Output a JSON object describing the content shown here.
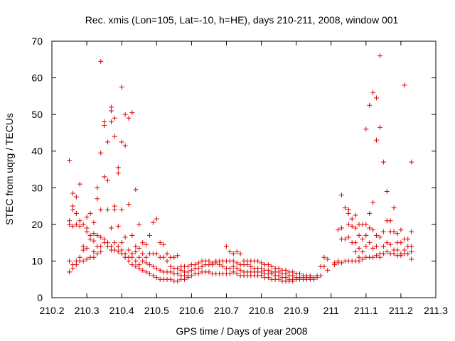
{
  "chart_data": {
    "type": "scatter",
    "title": "Rec. xmis (Lon=105, Lat=-10, h=HE), days 210-211, 2008, window 001",
    "xlabel": "GPS time / Days of year 2008",
    "ylabel": "STEC from uqrg / TECUs",
    "xlim": [
      210.2,
      211.3
    ],
    "ylim": [
      0,
      70
    ],
    "x_ticks": [
      "210.2",
      "210.3",
      "210.4",
      "210.5",
      "210.6",
      "210.7",
      "210.8",
      "210.9",
      "211",
      "211.1",
      "211.2",
      "211.3"
    ],
    "y_ticks": [
      "0",
      "10",
      "20",
      "30",
      "40",
      "50",
      "60",
      "70"
    ],
    "grid": false,
    "legend": "none",
    "marker": "+",
    "color": "#dd0000",
    "points": [
      [
        210.25,
        37.5
      ],
      [
        210.25,
        21
      ],
      [
        210.25,
        20
      ],
      [
        210.25,
        10
      ],
      [
        210.25,
        7
      ],
      [
        210.26,
        28.5
      ],
      [
        210.26,
        25
      ],
      [
        210.26,
        24
      ],
      [
        210.26,
        19.5
      ],
      [
        210.26,
        9
      ],
      [
        210.26,
        8
      ],
      [
        210.27,
        27.5
      ],
      [
        210.27,
        23
      ],
      [
        210.27,
        20
      ],
      [
        210.27,
        10
      ],
      [
        210.27,
        9
      ],
      [
        210.28,
        31
      ],
      [
        210.28,
        21
      ],
      [
        210.28,
        19.5
      ],
      [
        210.28,
        11
      ],
      [
        210.28,
        10
      ],
      [
        210.29,
        20
      ],
      [
        210.29,
        14
      ],
      [
        210.29,
        13
      ],
      [
        210.29,
        10
      ],
      [
        210.3,
        22
      ],
      [
        210.3,
        19
      ],
      [
        210.3,
        18
      ],
      [
        210.3,
        13.5
      ],
      [
        210.3,
        10.5
      ],
      [
        210.31,
        23
      ],
      [
        210.31,
        17
      ],
      [
        210.31,
        16
      ],
      [
        210.31,
        11
      ],
      [
        210.32,
        20.5
      ],
      [
        210.32,
        17.5
      ],
      [
        210.32,
        15.5
      ],
      [
        210.32,
        12.5
      ],
      [
        210.32,
        11
      ],
      [
        210.33,
        30
      ],
      [
        210.33,
        27
      ],
      [
        210.33,
        17
      ],
      [
        210.33,
        14
      ],
      [
        210.33,
        12
      ],
      [
        210.34,
        64.5
      ],
      [
        210.34,
        39.5
      ],
      [
        210.34,
        24
      ],
      [
        210.34,
        16.5
      ],
      [
        210.34,
        14
      ],
      [
        210.34,
        12.5
      ],
      [
        210.35,
        48
      ],
      [
        210.35,
        47
      ],
      [
        210.35,
        33
      ],
      [
        210.35,
        16
      ],
      [
        210.35,
        15
      ],
      [
        210.36,
        42.5
      ],
      [
        210.36,
        32
      ],
      [
        210.36,
        24
      ],
      [
        210.36,
        15
      ],
      [
        210.36,
        14
      ],
      [
        210.37,
        52
      ],
      [
        210.37,
        51
      ],
      [
        210.37,
        48
      ],
      [
        210.37,
        19
      ],
      [
        210.37,
        14
      ],
      [
        210.37,
        13
      ],
      [
        210.38,
        49
      ],
      [
        210.38,
        44
      ],
      [
        210.38,
        25
      ],
      [
        210.38,
        24
      ],
      [
        210.38,
        15
      ],
      [
        210.38,
        13
      ],
      [
        210.39,
        35.5
      ],
      [
        210.39,
        34
      ],
      [
        210.39,
        19.5
      ],
      [
        210.39,
        14
      ],
      [
        210.39,
        12.5
      ],
      [
        210.4,
        57.5
      ],
      [
        210.4,
        42.5
      ],
      [
        210.4,
        24
      ],
      [
        210.4,
        15
      ],
      [
        210.4,
        13
      ],
      [
        210.4,
        12
      ],
      [
        210.41,
        50
      ],
      [
        210.41,
        41.5
      ],
      [
        210.41,
        16.5
      ],
      [
        210.41,
        12
      ],
      [
        210.41,
        11
      ],
      [
        210.42,
        49
      ],
      [
        210.42,
        25.5
      ],
      [
        210.42,
        13
      ],
      [
        210.42,
        11
      ],
      [
        210.42,
        10
      ],
      [
        210.43,
        50.5
      ],
      [
        210.43,
        17
      ],
      [
        210.43,
        12
      ],
      [
        210.43,
        11
      ],
      [
        210.43,
        9
      ],
      [
        210.44,
        29.5
      ],
      [
        210.44,
        14
      ],
      [
        210.44,
        12.5
      ],
      [
        210.44,
        10
      ],
      [
        210.44,
        8.5
      ],
      [
        210.45,
        20
      ],
      [
        210.45,
        13.5
      ],
      [
        210.45,
        11
      ],
      [
        210.45,
        9
      ],
      [
        210.45,
        8
      ],
      [
        210.46,
        15
      ],
      [
        210.46,
        12
      ],
      [
        210.46,
        10
      ],
      [
        210.46,
        7.5
      ],
      [
        210.47,
        14.5
      ],
      [
        210.47,
        11
      ],
      [
        210.47,
        9.5
      ],
      [
        210.47,
        7
      ],
      [
        210.48,
        17
      ],
      [
        210.48,
        12
      ],
      [
        210.48,
        9
      ],
      [
        210.48,
        6.5
      ],
      [
        210.49,
        20.5
      ],
      [
        210.49,
        12
      ],
      [
        210.49,
        8.5
      ],
      [
        210.49,
        6
      ],
      [
        210.5,
        21.5
      ],
      [
        210.5,
        12
      ],
      [
        210.5,
        8
      ],
      [
        210.5,
        5.5
      ],
      [
        210.51,
        15
      ],
      [
        210.51,
        11
      ],
      [
        210.51,
        7.5
      ],
      [
        210.51,
        5
      ],
      [
        210.52,
        14.5
      ],
      [
        210.52,
        11
      ],
      [
        210.52,
        7
      ],
      [
        210.52,
        5
      ],
      [
        210.53,
        12
      ],
      [
        210.53,
        10
      ],
      [
        210.53,
        7
      ],
      [
        210.53,
        5
      ],
      [
        210.54,
        11
      ],
      [
        210.54,
        8.5
      ],
      [
        210.54,
        7
      ],
      [
        210.54,
        5
      ],
      [
        210.55,
        11
      ],
      [
        210.55,
        8
      ],
      [
        210.55,
        6.5
      ],
      [
        210.55,
        4.5
      ],
      [
        210.56,
        11.5
      ],
      [
        210.56,
        8
      ],
      [
        210.56,
        6.5
      ],
      [
        210.56,
        4.5
      ],
      [
        210.57,
        8.5
      ],
      [
        210.57,
        7.5
      ],
      [
        210.57,
        6
      ],
      [
        210.57,
        5
      ],
      [
        210.58,
        8.5
      ],
      [
        210.58,
        7
      ],
      [
        210.58,
        6
      ],
      [
        210.58,
        5
      ],
      [
        210.59,
        8.5
      ],
      [
        210.59,
        7
      ],
      [
        210.59,
        6
      ],
      [
        210.59,
        5.5
      ],
      [
        210.6,
        9
      ],
      [
        210.6,
        7.5
      ],
      [
        210.6,
        6
      ],
      [
        210.61,
        9
      ],
      [
        210.61,
        8
      ],
      [
        210.61,
        6.5
      ],
      [
        210.62,
        9.5
      ],
      [
        210.62,
        8
      ],
      [
        210.62,
        6.5
      ],
      [
        210.63,
        10
      ],
      [
        210.63,
        8.5
      ],
      [
        210.63,
        7
      ],
      [
        210.64,
        10
      ],
      [
        210.64,
        9
      ],
      [
        210.64,
        7
      ],
      [
        210.65,
        10
      ],
      [
        210.65,
        9
      ],
      [
        210.65,
        7
      ],
      [
        210.66,
        9.5
      ],
      [
        210.66,
        9
      ],
      [
        210.66,
        6.5
      ],
      [
        210.67,
        10
      ],
      [
        210.67,
        9.5
      ],
      [
        210.67,
        6.5
      ],
      [
        210.68,
        10
      ],
      [
        210.68,
        9
      ],
      [
        210.68,
        6.5
      ],
      [
        210.69,
        10
      ],
      [
        210.69,
        8.5
      ],
      [
        210.69,
        6.5
      ],
      [
        210.7,
        14
      ],
      [
        210.7,
        10
      ],
      [
        210.7,
        8
      ],
      [
        210.7,
        6.5
      ],
      [
        210.71,
        12.5
      ],
      [
        210.71,
        10
      ],
      [
        210.71,
        8
      ],
      [
        210.71,
        6.5
      ],
      [
        210.72,
        12
      ],
      [
        210.72,
        10
      ],
      [
        210.72,
        8.5
      ],
      [
        210.72,
        7
      ],
      [
        210.73,
        12.5
      ],
      [
        210.73,
        9.5
      ],
      [
        210.73,
        8
      ],
      [
        210.73,
        6.5
      ],
      [
        210.74,
        12
      ],
      [
        210.74,
        9
      ],
      [
        210.74,
        7.5
      ],
      [
        210.74,
        6
      ],
      [
        210.75,
        10
      ],
      [
        210.75,
        9
      ],
      [
        210.75,
        7
      ],
      [
        210.75,
        6
      ],
      [
        210.76,
        10
      ],
      [
        210.76,
        9
      ],
      [
        210.76,
        7
      ],
      [
        210.76,
        6
      ],
      [
        210.77,
        10
      ],
      [
        210.77,
        8.5
      ],
      [
        210.77,
        7
      ],
      [
        210.77,
        6
      ],
      [
        210.78,
        10
      ],
      [
        210.78,
        8
      ],
      [
        210.78,
        7
      ],
      [
        210.78,
        6
      ],
      [
        210.79,
        10
      ],
      [
        210.79,
        8
      ],
      [
        210.79,
        7
      ],
      [
        210.79,
        6
      ],
      [
        210.8,
        9.5
      ],
      [
        210.8,
        8
      ],
      [
        210.8,
        7
      ],
      [
        210.8,
        6
      ],
      [
        210.81,
        9
      ],
      [
        210.81,
        7.5
      ],
      [
        210.81,
        6.5
      ],
      [
        210.81,
        5.5
      ],
      [
        210.82,
        9
      ],
      [
        210.82,
        7.5
      ],
      [
        210.82,
        6.5
      ],
      [
        210.82,
        5.5
      ],
      [
        210.83,
        8.5
      ],
      [
        210.83,
        7
      ],
      [
        210.83,
        6.5
      ],
      [
        210.83,
        5
      ],
      [
        210.84,
        8
      ],
      [
        210.84,
        7
      ],
      [
        210.84,
        6
      ],
      [
        210.84,
        5
      ],
      [
        210.85,
        8
      ],
      [
        210.85,
        7
      ],
      [
        210.85,
        6
      ],
      [
        210.85,
        5
      ],
      [
        210.86,
        7.5
      ],
      [
        210.86,
        6.5
      ],
      [
        210.86,
        5.5
      ],
      [
        210.86,
        4.5
      ],
      [
        210.87,
        7.5
      ],
      [
        210.87,
        6.5
      ],
      [
        210.87,
        5.5
      ],
      [
        210.87,
        4.5
      ],
      [
        210.88,
        7
      ],
      [
        210.88,
        6
      ],
      [
        210.88,
        5
      ],
      [
        210.88,
        4.5
      ],
      [
        210.89,
        7
      ],
      [
        210.89,
        6
      ],
      [
        210.89,
        5
      ],
      [
        210.89,
        4.5
      ],
      [
        210.9,
        6.5
      ],
      [
        210.9,
        5.5
      ],
      [
        210.9,
        5
      ],
      [
        210.91,
        6.5
      ],
      [
        210.91,
        5.5
      ],
      [
        210.91,
        5
      ],
      [
        210.92,
        6
      ],
      [
        210.92,
        5.5
      ],
      [
        210.92,
        5
      ],
      [
        210.93,
        6
      ],
      [
        210.93,
        5.5
      ],
      [
        210.93,
        5
      ],
      [
        210.94,
        6
      ],
      [
        210.94,
        5.5
      ],
      [
        210.94,
        5
      ],
      [
        210.95,
        5.5
      ],
      [
        210.95,
        5
      ],
      [
        210.96,
        6
      ],
      [
        210.96,
        5.5
      ],
      [
        210.97,
        8.5
      ],
      [
        210.97,
        6
      ],
      [
        210.98,
        11
      ],
      [
        210.98,
        8.5
      ],
      [
        210.99,
        10.5
      ],
      [
        210.99,
        7.5
      ],
      [
        211.01,
        9.5
      ],
      [
        211.01,
        9
      ],
      [
        211.02,
        18.5
      ],
      [
        211.02,
        10
      ],
      [
        211.02,
        9.5
      ],
      [
        211.03,
        28
      ],
      [
        211.03,
        19
      ],
      [
        211.03,
        16
      ],
      [
        211.03,
        9.5
      ],
      [
        211.04,
        24.5
      ],
      [
        211.04,
        16
      ],
      [
        211.04,
        10
      ],
      [
        211.05,
        24
      ],
      [
        211.05,
        23
      ],
      [
        211.05,
        20
      ],
      [
        211.05,
        16.5
      ],
      [
        211.05,
        10
      ],
      [
        211.06,
        21.5
      ],
      [
        211.06,
        19.5
      ],
      [
        211.06,
        15
      ],
      [
        211.06,
        10
      ],
      [
        211.07,
        22.5
      ],
      [
        211.07,
        19
      ],
      [
        211.07,
        15
      ],
      [
        211.07,
        12.5
      ],
      [
        211.07,
        10
      ],
      [
        211.08,
        20
      ],
      [
        211.08,
        17
      ],
      [
        211.08,
        13.5
      ],
      [
        211.08,
        11
      ],
      [
        211.08,
        10
      ],
      [
        211.09,
        20
      ],
      [
        211.09,
        16
      ],
      [
        211.09,
        12.5
      ],
      [
        211.09,
        10.5
      ],
      [
        211.1,
        46
      ],
      [
        211.1,
        20
      ],
      [
        211.1,
        17
      ],
      [
        211.1,
        14
      ],
      [
        211.1,
        11
      ],
      [
        211.11,
        52.5
      ],
      [
        211.11,
        23
      ],
      [
        211.11,
        19
      ],
      [
        211.11,
        15
      ],
      [
        211.11,
        11
      ],
      [
        211.12,
        56
      ],
      [
        211.12,
        26
      ],
      [
        211.12,
        18.5
      ],
      [
        211.12,
        13.5
      ],
      [
        211.12,
        11
      ],
      [
        211.13,
        54.5
      ],
      [
        211.13,
        43
      ],
      [
        211.13,
        17
      ],
      [
        211.13,
        14
      ],
      [
        211.13,
        11.5
      ],
      [
        211.14,
        66
      ],
      [
        211.14,
        46.5
      ],
      [
        211.14,
        16.5
      ],
      [
        211.14,
        12
      ],
      [
        211.14,
        11
      ],
      [
        211.15,
        37
      ],
      [
        211.15,
        18
      ],
      [
        211.15,
        14
      ],
      [
        211.15,
        12
      ],
      [
        211.16,
        29
      ],
      [
        211.16,
        21
      ],
      [
        211.16,
        15
      ],
      [
        211.16,
        12.5
      ],
      [
        211.17,
        21
      ],
      [
        211.17,
        18
      ],
      [
        211.17,
        14.5
      ],
      [
        211.17,
        12
      ],
      [
        211.18,
        24.5
      ],
      [
        211.18,
        18
      ],
      [
        211.18,
        13
      ],
      [
        211.18,
        12
      ],
      [
        211.19,
        17.5
      ],
      [
        211.19,
        15
      ],
      [
        211.19,
        13
      ],
      [
        211.19,
        11.5
      ],
      [
        211.2,
        18.5
      ],
      [
        211.2,
        15
      ],
      [
        211.2,
        12
      ],
      [
        211.2,
        11.5
      ],
      [
        211.21,
        58
      ],
      [
        211.21,
        16
      ],
      [
        211.21,
        13
      ],
      [
        211.21,
        12
      ],
      [
        211.22,
        16
      ],
      [
        211.22,
        14
      ],
      [
        211.22,
        12
      ],
      [
        211.23,
        37
      ],
      [
        211.23,
        18
      ],
      [
        211.23,
        14
      ],
      [
        211.23,
        12.5
      ],
      [
        211.23,
        10.5
      ]
    ]
  }
}
